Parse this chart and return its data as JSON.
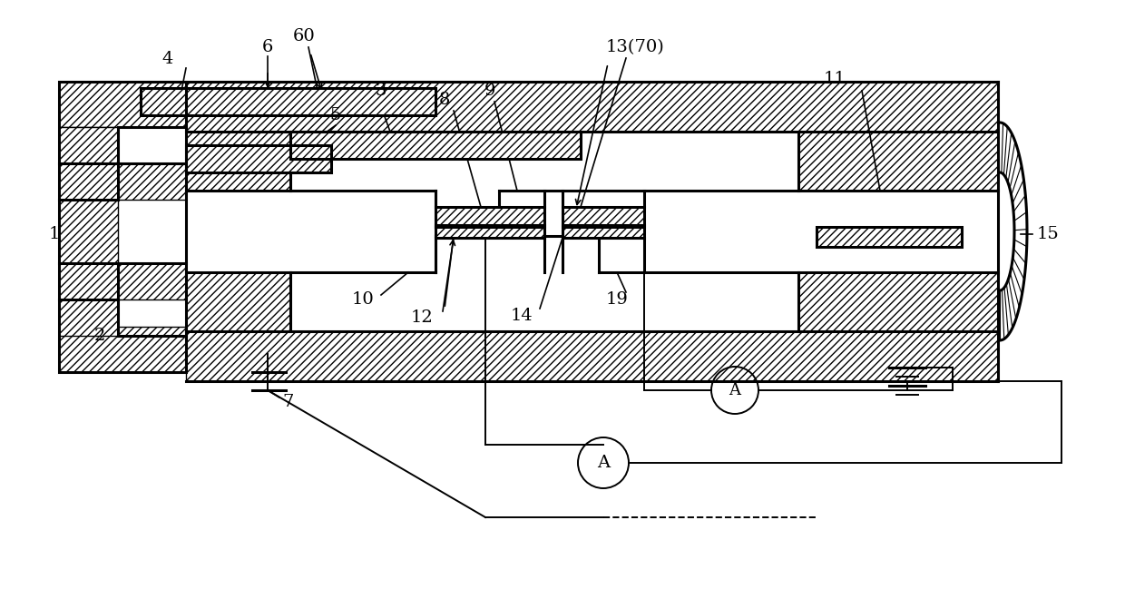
{
  "bg_color": "#ffffff",
  "line_color": "#000000",
  "figsize": [
    12.4,
    6.49
  ],
  "dpi": 100
}
